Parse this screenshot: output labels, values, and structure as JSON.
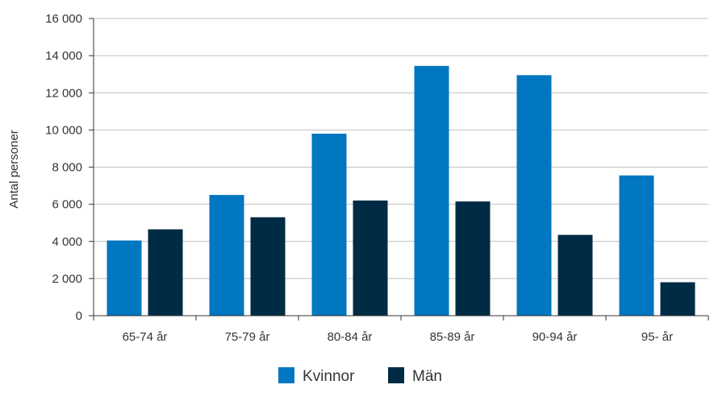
{
  "chart_data": {
    "type": "bar",
    "title": "",
    "xlabel": "",
    "ylabel": "Antal personer",
    "ylim": [
      0,
      16000
    ],
    "yticks": [
      0,
      2000,
      4000,
      6000,
      8000,
      10000,
      12000,
      14000,
      16000
    ],
    "ytick_labels": [
      "0",
      "2 000",
      "4 000",
      "6 000",
      "8 000",
      "10 000",
      "12 000",
      "14 000",
      "16 000"
    ],
    "categories": [
      "65-74 år",
      "75-79 år",
      "80-84 år",
      "85-89 år",
      "90-94 år",
      "95- år"
    ],
    "series": [
      {
        "name": "Kvinnor",
        "color": "#0077c0",
        "values": [
          4050,
          6500,
          9800,
          13450,
          12950,
          7550
        ]
      },
      {
        "name": "Män",
        "color": "#002b45",
        "values": [
          4650,
          5300,
          6200,
          6150,
          4350,
          1800
        ]
      }
    ],
    "grid": true,
    "legend_position": "bottom"
  }
}
